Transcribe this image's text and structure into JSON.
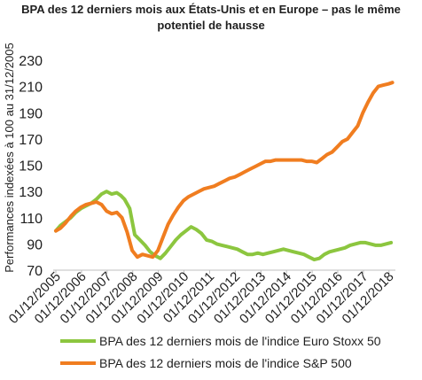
{
  "chart_data": {
    "type": "line",
    "title_line1": "BPA des 12 derniers mois aux États-Unis et en Europe – pas le même",
    "title_line2": "potentiel de hausse",
    "ylabel": "Performances indexées à 100 au 31/12/2005",
    "xlabel": "",
    "ylim": [
      70,
      230
    ],
    "yticks": [
      70,
      90,
      110,
      130,
      150,
      170,
      190,
      210,
      230
    ],
    "x_start": 2005.92,
    "x_end": 2019.1,
    "xtick_labels": [
      "01/12/2005",
      "01/12/2006",
      "01/12/2007",
      "01/12/2008",
      "01/12/2009",
      "01/12/2010",
      "01/12/2011",
      "01/12/2012",
      "01/12/2013",
      "01/12/2014",
      "01/12/2015",
      "01/12/2016",
      "01/12/2017",
      "01/12/2018"
    ],
    "legend_position": "bottom",
    "grid": false,
    "series": [
      {
        "name": "BPA des 12 derniers mois de l'indice Euro Stoxx 50",
        "color": "#8cc63f",
        "x": [
          2005.92,
          2006.1,
          2006.3,
          2006.5,
          2006.7,
          2006.9,
          2007.1,
          2007.3,
          2007.5,
          2007.7,
          2007.9,
          2008.1,
          2008.3,
          2008.45,
          2008.6,
          2008.8,
          2009.0,
          2009.2,
          2009.4,
          2009.6,
          2009.8,
          2010.0,
          2010.2,
          2010.4,
          2010.6,
          2010.8,
          2011.0,
          2011.2,
          2011.4,
          2011.6,
          2011.8,
          2012.0,
          2012.2,
          2012.4,
          2012.6,
          2012.8,
          2013.0,
          2013.2,
          2013.4,
          2013.6,
          2013.8,
          2014.0,
          2014.2,
          2014.4,
          2014.6,
          2014.8,
          2015.0,
          2015.2,
          2015.4,
          2015.6,
          2015.8,
          2016.0,
          2016.2,
          2016.4,
          2016.6,
          2016.8,
          2017.0,
          2017.2,
          2017.4,
          2017.6,
          2017.8,
          2018.0,
          2018.2,
          2018.4,
          2018.6,
          2018.8,
          2019.0
        ],
        "values": [
          100,
          104,
          107,
          110,
          114,
          117,
          119,
          121,
          124,
          128,
          130,
          128,
          129,
          127,
          124,
          117,
          97,
          93,
          89,
          84,
          81,
          79,
          83,
          88,
          93,
          97,
          100,
          103,
          101,
          98,
          93,
          92,
          90,
          89,
          88,
          87,
          86,
          84,
          82,
          82,
          83,
          82,
          83,
          84,
          85,
          86,
          85,
          84,
          83,
          82,
          80,
          78,
          79,
          82,
          84,
          85,
          86,
          87,
          89,
          90,
          91,
          91,
          90,
          89,
          89,
          90,
          91
        ]
      },
      {
        "name": "BPA des 12 derniers mois de l'indice S&P 500",
        "color": "#f07d20",
        "x": [
          2005.92,
          2006.1,
          2006.3,
          2006.5,
          2006.7,
          2006.9,
          2007.1,
          2007.3,
          2007.5,
          2007.7,
          2007.9,
          2008.1,
          2008.3,
          2008.5,
          2008.7,
          2008.9,
          2009.1,
          2009.3,
          2009.5,
          2009.7,
          2009.9,
          2010.1,
          2010.3,
          2010.5,
          2010.7,
          2010.9,
          2011.1,
          2011.3,
          2011.5,
          2011.7,
          2011.9,
          2012.1,
          2012.3,
          2012.5,
          2012.7,
          2012.9,
          2013.1,
          2013.3,
          2013.5,
          2013.7,
          2013.9,
          2014.1,
          2014.3,
          2014.5,
          2014.7,
          2014.9,
          2015.1,
          2015.3,
          2015.5,
          2015.7,
          2015.9,
          2016.1,
          2016.3,
          2016.5,
          2016.7,
          2016.9,
          2017.1,
          2017.3,
          2017.5,
          2017.7,
          2017.9,
          2018.1,
          2018.3,
          2018.5,
          2018.7,
          2018.9,
          2019.05
        ],
        "values": [
          100,
          102,
          106,
          111,
          115,
          118,
          120,
          121,
          122,
          120,
          115,
          113,
          114,
          110,
          99,
          85,
          80,
          82,
          81,
          80,
          85,
          95,
          105,
          112,
          118,
          123,
          126,
          128,
          130,
          132,
          133,
          134,
          136,
          138,
          140,
          141,
          143,
          145,
          147,
          149,
          151,
          153,
          153,
          154,
          154,
          154,
          154,
          154,
          154,
          153,
          153,
          152,
          155,
          158,
          160,
          164,
          168,
          170,
          175,
          180,
          190,
          198,
          205,
          210,
          211,
          212,
          213
        ]
      }
    ]
  }
}
